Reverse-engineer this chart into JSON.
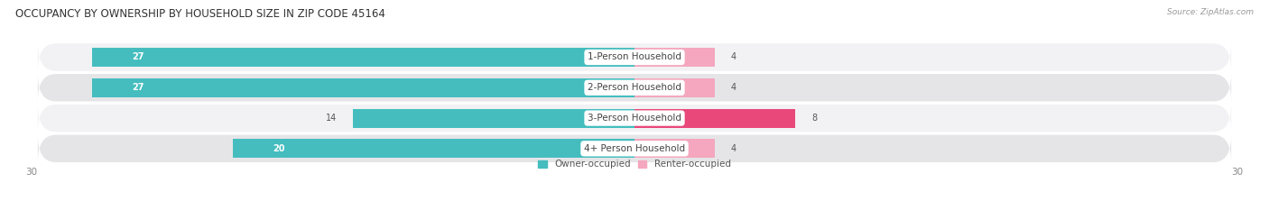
{
  "title": "OCCUPANCY BY OWNERSHIP BY HOUSEHOLD SIZE IN ZIP CODE 45164",
  "source": "Source: ZipAtlas.com",
  "categories": [
    "1-Person Household",
    "2-Person Household",
    "3-Person Household",
    "4+ Person Household"
  ],
  "owner_values": [
    27,
    27,
    14,
    20
  ],
  "renter_values": [
    4,
    4,
    8,
    4
  ],
  "owner_color": "#45BDBF",
  "renter_color_light": "#F4A7BE",
  "renter_color_dark": "#E8487A",
  "row_bg_light": "#F2F2F4",
  "row_bg_dark": "#E5E5E8",
  "x_max": 30,
  "x_min": -30,
  "label_fontsize": 7.5,
  "title_fontsize": 8.5,
  "value_fontsize": 7,
  "axis_tick_fontsize": 7.5,
  "legend_fontsize": 7.5,
  "source_fontsize": 6.5
}
